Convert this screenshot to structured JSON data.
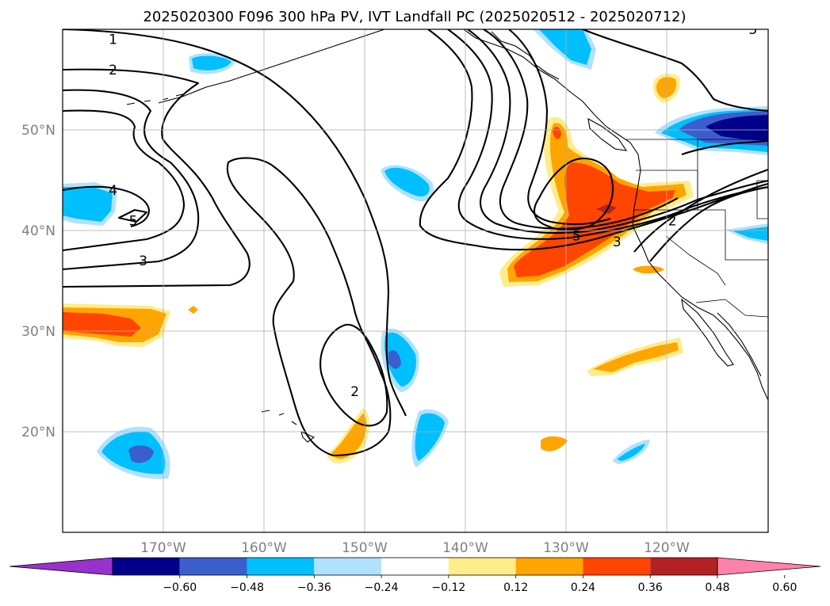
{
  "title": "2025020300 F096 300 hPa PV, IVT Landfall PC (2025020512 - 2025020712)",
  "map": {
    "projection": "PlateCarree",
    "lon_range": [
      -180,
      -110
    ],
    "lat_range": [
      10,
      60
    ],
    "grid": true,
    "lon_ticks": [
      {
        "lon": -170,
        "label": "170°W"
      },
      {
        "lon": -160,
        "label": "160°W"
      },
      {
        "lon": -150,
        "label": "150°W"
      },
      {
        "lon": -140,
        "label": "140°W"
      },
      {
        "lon": -130,
        "label": "130°W"
      },
      {
        "lon": -120,
        "label": "120°W"
      }
    ],
    "lat_ticks": [
      {
        "lat": 20,
        "label": "20°N"
      },
      {
        "lat": 30,
        "label": "30°N"
      },
      {
        "lat": 40,
        "label": "40°N"
      },
      {
        "lat": 50,
        "label": "50°N"
      }
    ],
    "contour_labels": [
      {
        "text": "1",
        "lon": -175,
        "lat": 59
      },
      {
        "text": "2",
        "lon": -175,
        "lat": 56
      },
      {
        "text": "4",
        "lon": -175,
        "lat": 44
      },
      {
        "text": "5",
        "lon": -173,
        "lat": 41
      },
      {
        "text": "3",
        "lon": -172,
        "lat": 37
      },
      {
        "text": "2",
        "lon": -151,
        "lat": 24
      },
      {
        "text": "5",
        "lon": -129,
        "lat": 39.5
      },
      {
        "text": "3",
        "lon": -125,
        "lat": 38.9
      },
      {
        "text": "2",
        "lon": -119.5,
        "lat": 41
      },
      {
        "text": "5",
        "lon": -111.5,
        "lat": 60
      }
    ]
  },
  "colorbar": {
    "levels": [
      "−0.60",
      "−0.48",
      "−0.36",
      "−0.24",
      "−0.12",
      "0.12",
      "0.24",
      "0.36",
      "0.48",
      "0.60"
    ],
    "colors": [
      "#9932cc",
      "#00008b",
      "#3a5fcd",
      "#00bfff",
      "#b0e2ff",
      "#ffffff",
      "#ffec8b",
      "#ffa500",
      "#ff4500",
      "#b22222",
      "#ff82ab"
    ],
    "extend": "both"
  }
}
